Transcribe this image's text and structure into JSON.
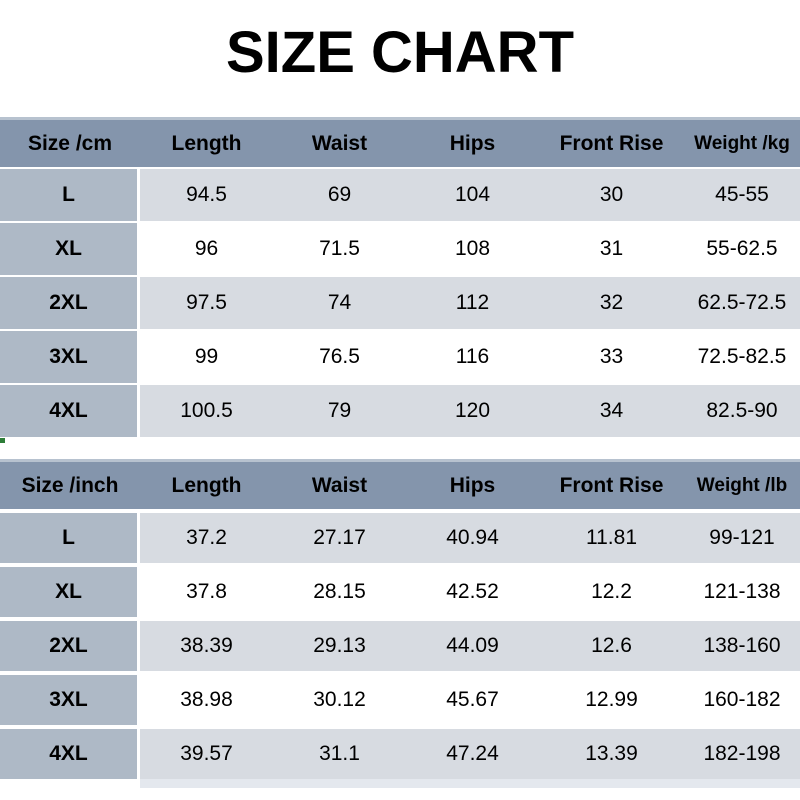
{
  "title": "SIZE CHART",
  "colors": {
    "header_bg": "#8495ac",
    "header_top_border": "#b7c2cf",
    "size_column_bg": "#aeb9c6",
    "row_alt_bg": "#d7dbe1",
    "row_bg": "#ffffff",
    "bottom_strip": "#e4e8ee",
    "speck": "#2d7d38",
    "text": "#000000"
  },
  "chart_data": {
    "type": "table",
    "title": "SIZE CHART",
    "tables": [
      {
        "unit": "cm",
        "headers": [
          "Size /cm",
          "Length",
          "Waist",
          "Hips",
          "Front Rise",
          "Weight /kg"
        ],
        "rows": [
          {
            "size": "L",
            "values": [
              "94.5",
              "69",
              "104",
              "30",
              "45-55"
            ]
          },
          {
            "size": "XL",
            "values": [
              "96",
              "71.5",
              "108",
              "31",
              "55-62.5"
            ]
          },
          {
            "size": "2XL",
            "values": [
              "97.5",
              "74",
              "112",
              "32",
              "62.5-72.5"
            ]
          },
          {
            "size": "3XL",
            "values": [
              "99",
              "76.5",
              "116",
              "33",
              "72.5-82.5"
            ]
          },
          {
            "size": "4XL",
            "values": [
              "100.5",
              "79",
              "120",
              "34",
              "82.5-90"
            ]
          }
        ]
      },
      {
        "unit": "inch",
        "headers": [
          "Size /inch",
          "Length",
          "Waist",
          "Hips",
          "Front Rise",
          "Weight /lb"
        ],
        "rows": [
          {
            "size": "L",
            "values": [
              "37.2",
              "27.17",
              "40.94",
              "11.81",
              "99-121"
            ]
          },
          {
            "size": "XL",
            "values": [
              "37.8",
              "28.15",
              "42.52",
              "12.2",
              "121-138"
            ]
          },
          {
            "size": "2XL",
            "values": [
              "38.39",
              "29.13",
              "44.09",
              "12.6",
              "138-160"
            ]
          },
          {
            "size": "3XL",
            "values": [
              "38.98",
              "30.12",
              "45.67",
              "12.99",
              "160-182"
            ]
          },
          {
            "size": "4XL",
            "values": [
              "39.57",
              "31.1",
              "47.24",
              "13.39",
              "182-198"
            ]
          }
        ]
      }
    ]
  }
}
